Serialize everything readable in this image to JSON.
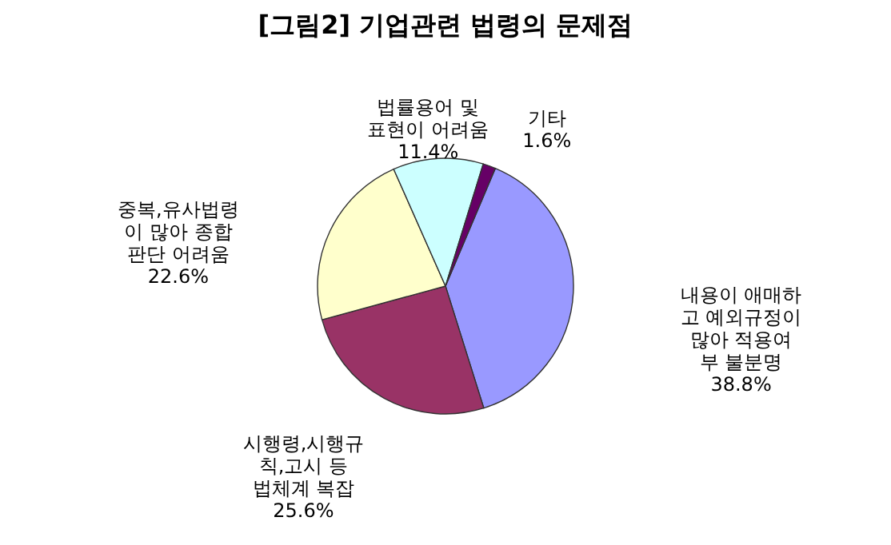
{
  "chart_data": {
    "type": "pie",
    "title": "[그림2] 기업관련 법령의 문제점",
    "categories": [
      "내용이 애매하고 예외규정이 많아 적용여부 불분명",
      "시행령,시행규칙,고시 등 법체계 복잡",
      "중복,유사법령이 많아 종합판단 어려움",
      "법률용어 및 표현이 어려움",
      "기타"
    ],
    "values": [
      38.8,
      25.6,
      22.6,
      11.4,
      1.6
    ],
    "value_labels": [
      "38.8%",
      "25.6%",
      "22.6%",
      "11.4%",
      "1.6%"
    ],
    "colors": [
      "#9999ff",
      "#993366",
      "#ffffcc",
      "#ccffff",
      "#660066"
    ]
  }
}
